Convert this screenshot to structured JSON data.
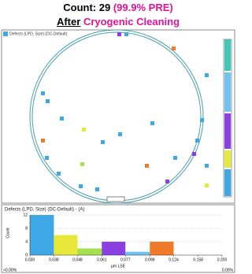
{
  "header": {
    "count": "Count: 29",
    "pre": "(99.9% PRE)",
    "after": "After",
    "process": "Cryogenic Cleaning"
  },
  "map_title": "Defects (LPD, Size) (DC-Default)",
  "chart_data": {
    "type": "histogram",
    "title": "Defects (LPD, Size) (DC-Default) - (A)",
    "ylabel": "Count",
    "xlabel": "µm LSE",
    "bins": [
      0.03,
      0.038,
      0.048,
      0.061,
      0.077,
      0.098,
      0.124,
      0.158,
      0.2
    ],
    "counts": [
      12,
      6,
      2,
      4,
      1,
      4,
      0,
      0
    ],
    "colors": [
      "#3ea8e6",
      "#e8e83a",
      "#a6e04c",
      "#8b3fe0",
      "#6fc3f0",
      "#f07a2a",
      "#999999",
      "#999999"
    ],
    "xlim": [
      0.03,
      0.2
    ],
    "log_x": true,
    "xticks": [
      {
        "value": 0.03,
        "label": "0.030"
      },
      {
        "value": 0.038,
        "label": "0.038"
      },
      {
        "value": 0.048,
        "label": "0.048"
      },
      {
        "value": 0.061,
        "label": "0.061"
      },
      {
        "value": 0.077,
        "label": "0.077"
      },
      {
        "value": 0.098,
        "label": "0.098"
      },
      {
        "value": 0.124,
        "label": "0.124"
      },
      {
        "value": 0.158,
        "label": "0.158"
      },
      {
        "value": 0.2,
        "label": "0.200"
      }
    ],
    "ylim": [
      0,
      12
    ],
    "yticks": [
      0,
      4,
      8,
      12
    ],
    "grid": true,
    "left_note": "<0.00%",
    "right_note": "0.00%"
  }
}
